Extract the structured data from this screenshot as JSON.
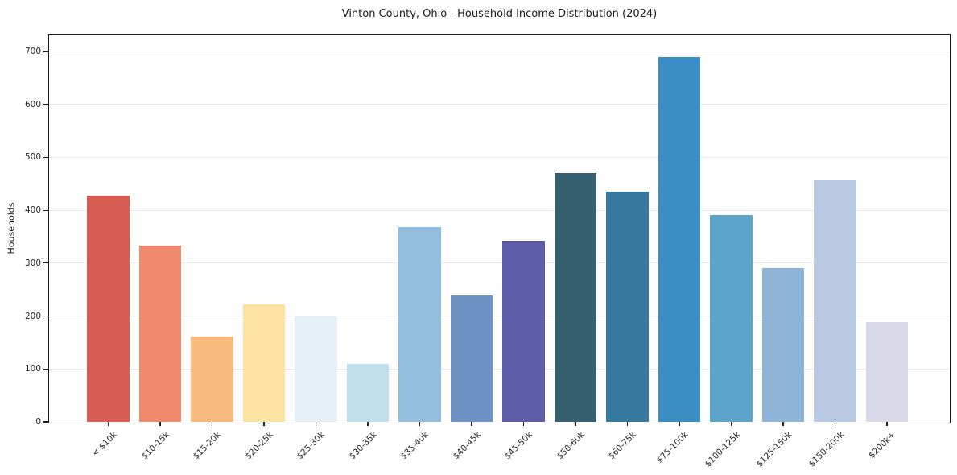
{
  "chart_data": {
    "type": "bar",
    "title": "Vinton County, Ohio - Household Income Distribution (2024)",
    "xlabel": "",
    "ylabel": "Households",
    "categories": [
      "< $10k",
      "$10-15k",
      "$15-20k",
      "$20-25k",
      "$25-30k",
      "$30-35k",
      "$35-40k",
      "$40-45k",
      "$45-50k",
      "$50-60k",
      "$60-75k",
      "$75-100k",
      "$100-125k",
      "$125-150k",
      "$150-200k",
      "$200k+"
    ],
    "values": [
      428,
      333,
      162,
      222,
      200,
      110,
      369,
      239,
      342,
      470,
      435,
      690,
      391,
      291,
      456,
      188
    ],
    "bar_colors": [
      "#d75d52",
      "#f18a6d",
      "#f9ba7d",
      "#fce3a4",
      "#e5f1f6",
      "#bfdfec",
      "#93bddc",
      "#6c93c4",
      "#5c5ca9",
      "#36606f",
      "#37799e",
      "#3a8ec3",
      "#5ca4c9",
      "#8fb4d9",
      "#b9c9e2",
      "#d7d9e7"
    ],
    "yticks": [
      0,
      100,
      200,
      300,
      400,
      500,
      600,
      700
    ],
    "ylim": [
      0,
      732
    ],
    "grid": true,
    "legend": false,
    "bar_width_fraction": 0.8
  },
  "colors": {
    "background": "#ffffff",
    "grid": "#e9e9e9",
    "spine": "#1c1c1c",
    "text": "#262626"
  }
}
